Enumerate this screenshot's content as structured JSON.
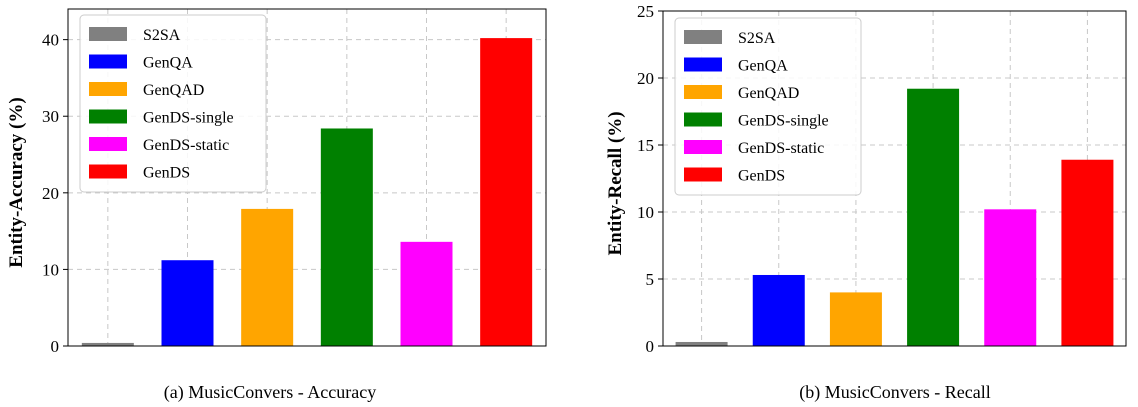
{
  "chart_data": [
    {
      "type": "bar",
      "caption": "(a) MusicConvers - Accuracy",
      "categories": [
        "S2SA",
        "GenQA",
        "GenQAD",
        "GenDS-single",
        "GenDS-static",
        "GenDS"
      ],
      "values": [
        0.4,
        11.2,
        17.9,
        28.4,
        13.6,
        40.2
      ],
      "colors": [
        "#808080",
        "#0000ff",
        "#ffa500",
        "#008000",
        "#ff00ff",
        "#ff0000"
      ],
      "ylabel": "Entity-Accuracy (%)",
      "xlabel": "",
      "ylim": [
        0,
        44
      ],
      "yticks": [
        0,
        10,
        20,
        30,
        40
      ],
      "grid": true,
      "legend": "top-left"
    },
    {
      "type": "bar",
      "caption": "(b) MusicConvers - Recall",
      "categories": [
        "S2SA",
        "GenQA",
        "GenQAD",
        "GenDS-single",
        "GenDS-static",
        "GenDS"
      ],
      "values": [
        0.3,
        5.3,
        4.0,
        19.2,
        10.2,
        13.9
      ],
      "colors": [
        "#808080",
        "#0000ff",
        "#ffa500",
        "#008000",
        "#ff00ff",
        "#ff0000"
      ],
      "ylabel": "Entity-Recall (%)",
      "xlabel": "",
      "ylim": [
        0,
        25
      ],
      "yticks": [
        0,
        5,
        10,
        15,
        20,
        25
      ],
      "grid": true,
      "legend": "top-left"
    }
  ]
}
